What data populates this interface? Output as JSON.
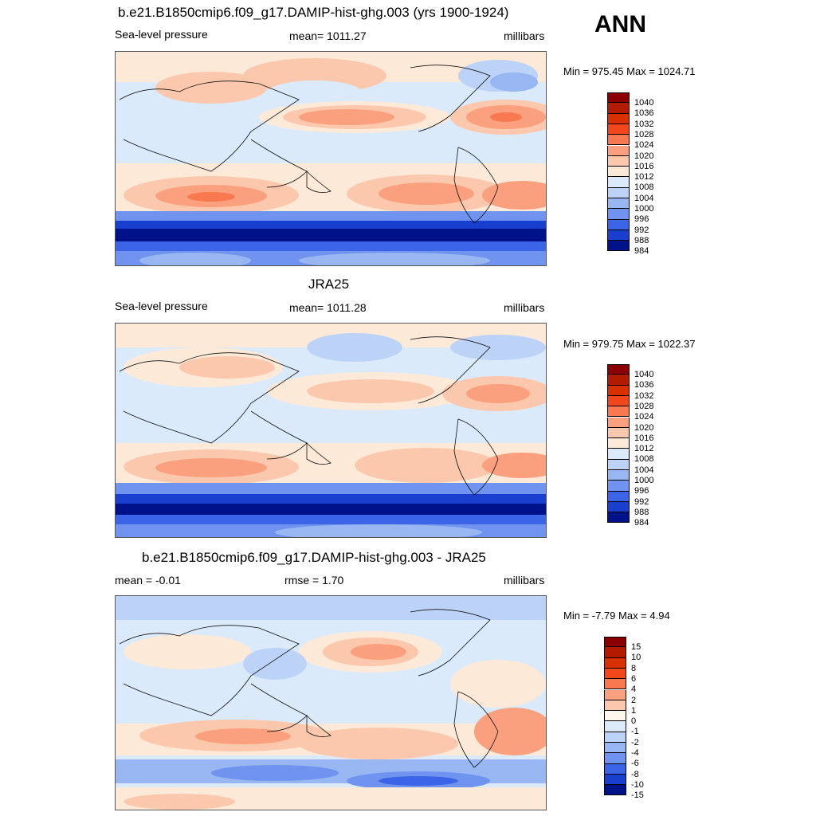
{
  "season": "ANN",
  "panels": [
    {
      "title": "b.e21.B1850cmip6.f09_g17.DAMIP-hist-ghg.003 (yrs 1900-1924)",
      "left_label": "Sea-level pressure",
      "center_label": "mean= 1011.27",
      "right_label": "millibars",
      "minmax": "Min = 975.45 Max = 1024.71",
      "colorbar_labels": [
        "1040",
        "1036",
        "1032",
        "1028",
        "1024",
        "1020",
        "1016",
        "1012",
        "1008",
        "1004",
        "1000",
        "996",
        "992",
        "988",
        "984"
      ],
      "colorbar_colors": [
        "#8b0000",
        "#b31b00",
        "#d83000",
        "#f2471c",
        "#f8794f",
        "#fba07e",
        "#fcc8ad",
        "#fde9d8",
        "#dbeafb",
        "#bcd3f7",
        "#97b6f2",
        "#6f93ee",
        "#3c64e6",
        "#1a3fcf",
        "#00128a"
      ]
    },
    {
      "title": "JRA25",
      "left_label": "Sea-level pressure",
      "center_label": "mean= 1011.28",
      "right_label": "millibars",
      "minmax": "Min = 979.75 Max = 1022.37",
      "colorbar_labels": [
        "1040",
        "1036",
        "1032",
        "1028",
        "1024",
        "1020",
        "1016",
        "1012",
        "1008",
        "1004",
        "1000",
        "996",
        "992",
        "988",
        "984"
      ],
      "colorbar_colors": [
        "#8b0000",
        "#b31b00",
        "#d83000",
        "#f2471c",
        "#f8794f",
        "#fba07e",
        "#fcc8ad",
        "#fde9d8",
        "#dbeafb",
        "#bcd3f7",
        "#97b6f2",
        "#6f93ee",
        "#3c64e6",
        "#1a3fcf",
        "#00128a"
      ]
    },
    {
      "title": "b.e21.B1850cmip6.f09_g17.DAMIP-hist-ghg.003 - JRA25",
      "left_label": "mean =  -0.01",
      "center_label": "rmse =    1.70",
      "right_label": "millibars",
      "minmax": "Min =  -7.79 Max =   4.94",
      "colorbar_labels": [
        "15",
        "10",
        "8",
        "6",
        "4",
        "2",
        "1",
        "0",
        "-1",
        "-2",
        "-4",
        "-6",
        "-8",
        "-10",
        "-15"
      ],
      "colorbar_colors": [
        "#8b0000",
        "#b31b00",
        "#d83000",
        "#f2471c",
        "#f8794f",
        "#fba07e",
        "#fcc8ad",
        "#fff6ee",
        "#dbeafb",
        "#bcd3f7",
        "#97b6f2",
        "#6f93ee",
        "#3c64e6",
        "#1a3fcf",
        "#00128a"
      ]
    }
  ]
}
